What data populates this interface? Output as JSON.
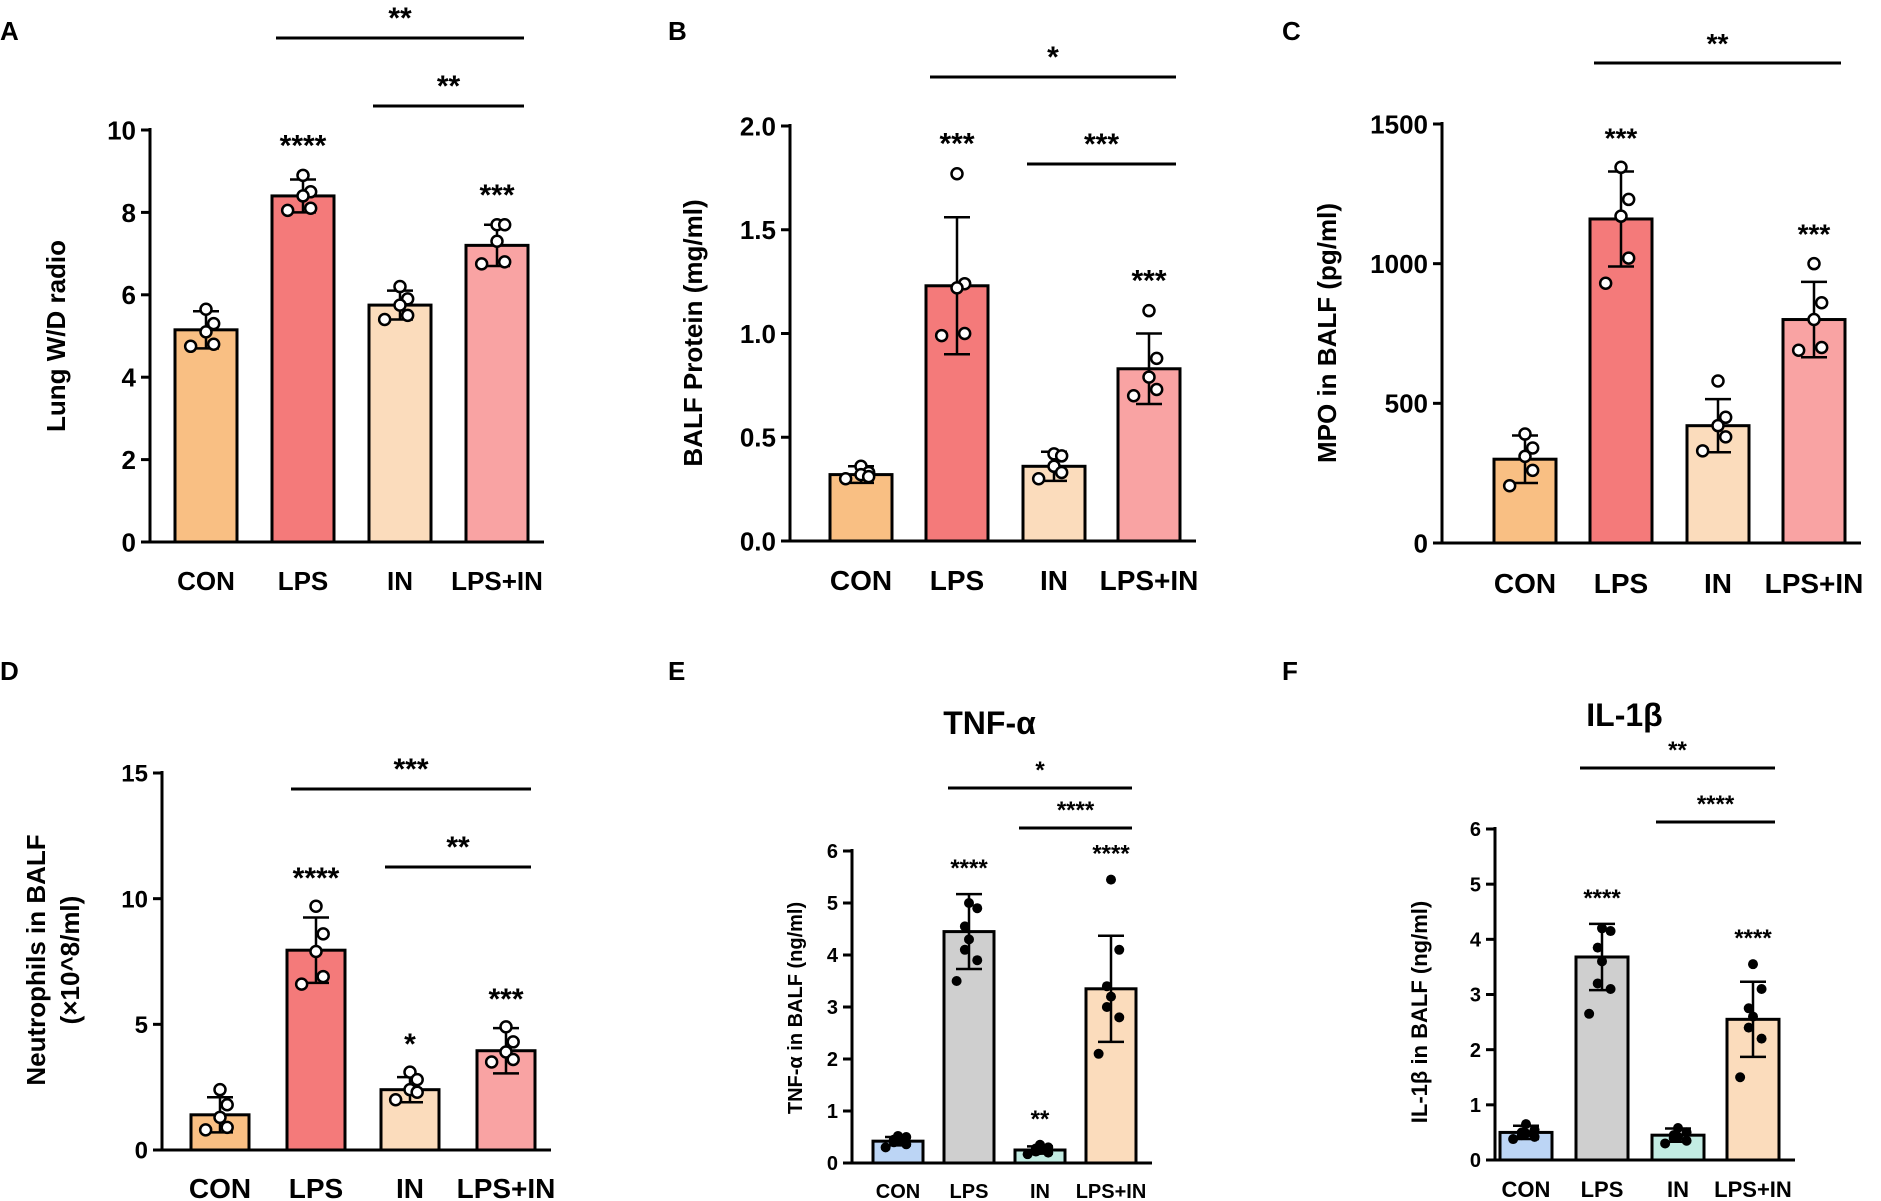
{
  "chart_data": [
    {
      "panel": "A",
      "type": "bar",
      "title": "",
      "ylabel": "Lung W/D radio",
      "xlabel": "",
      "ylim": [
        0,
        10
      ],
      "yticks": [
        0,
        2,
        4,
        6,
        8,
        10
      ],
      "categories": [
        "CON",
        "LPS",
        "IN",
        "LPS+IN"
      ],
      "values": [
        5.15,
        8.4,
        5.75,
        7.2
      ],
      "errors": [
        0.45,
        0.4,
        0.35,
        0.5
      ],
      "colors": [
        "#f9bf83",
        "#f47a7a",
        "#fbdcbc",
        "#f9a3a3"
      ],
      "points": [
        [
          5.65,
          5.3,
          5.1,
          4.8,
          4.75
        ],
        [
          8.9,
          8.5,
          8.4,
          8.1,
          8.05
        ],
        [
          6.2,
          5.9,
          5.75,
          5.5,
          5.4
        ],
        [
          7.7,
          7.7,
          7.3,
          6.8,
          6.75
        ]
      ],
      "marker": "open",
      "bar_annotations": [
        "",
        "****",
        "",
        "***"
      ],
      "brackets": [
        {
          "from": "LPS",
          "to": "LPS+IN",
          "label": "**"
        },
        {
          "from": "IN",
          "to": "LPS+IN",
          "label": "**"
        }
      ]
    },
    {
      "panel": "B",
      "type": "bar",
      "title": "",
      "ylabel": "BALF Protein (mg/ml)",
      "xlabel": "",
      "ylim": [
        0,
        2.0
      ],
      "yticks": [
        "0.0",
        "0.5",
        "1.0",
        "1.5",
        "2.0"
      ],
      "categories": [
        "CON",
        "LPS",
        "IN",
        "LPS+IN"
      ],
      "values": [
        0.32,
        1.23,
        0.36,
        0.83
      ],
      "errors": [
        0.04,
        0.33,
        0.07,
        0.17
      ],
      "colors": [
        "#f9bf83",
        "#f47a7a",
        "#fbdcbc",
        "#f9a3a3"
      ],
      "points": [
        [
          0.36,
          0.33,
          0.32,
          0.31,
          0.3
        ],
        [
          1.77,
          1.24,
          1.22,
          1.0,
          0.99
        ],
        [
          0.42,
          0.41,
          0.36,
          0.33,
          0.3
        ],
        [
          1.11,
          0.88,
          0.79,
          0.73,
          0.7
        ]
      ],
      "marker": "open",
      "bar_annotations": [
        "",
        "***",
        "",
        "***"
      ],
      "brackets": [
        {
          "from": "LPS",
          "to": "LPS+IN",
          "label": "*"
        },
        {
          "from": "IN",
          "to": "LPS+IN",
          "label": "***"
        }
      ]
    },
    {
      "panel": "C",
      "type": "bar",
      "title": "",
      "ylabel": "MPO in BALF (pg/ml)",
      "xlabel": "",
      "ylim": [
        0,
        1500
      ],
      "yticks": [
        0,
        500,
        1000,
        1500
      ],
      "categories": [
        "CON",
        "LPS",
        "IN",
        "LPS+IN"
      ],
      "values": [
        300,
        1160,
        420,
        800
      ],
      "errors": [
        85,
        170,
        95,
        135
      ],
      "colors": [
        "#f9bf83",
        "#f47a7a",
        "#fbdcbc",
        "#f9a3a3"
      ],
      "points": [
        [
          390,
          340,
          310,
          260,
          205
        ],
        [
          1345,
          1230,
          1170,
          1020,
          930
        ],
        [
          580,
          450,
          420,
          380,
          330
        ],
        [
          1000,
          860,
          800,
          700,
          690
        ]
      ],
      "marker": "open",
      "bar_annotations": [
        "",
        "***",
        "",
        "***"
      ],
      "brackets": [
        {
          "from": "LPS",
          "to": "LPS+IN",
          "label": "**"
        }
      ]
    },
    {
      "panel": "D",
      "type": "bar",
      "title": "",
      "ylabel": "Neutrophils in BALF (×10^8/ml)",
      "xlabel": "",
      "ylim": [
        0,
        15
      ],
      "yticks": [
        0,
        5,
        10,
        15
      ],
      "categories": [
        "CON",
        "LPS",
        "IN",
        "LPS+IN"
      ],
      "values": [
        1.4,
        7.95,
        2.4,
        3.95
      ],
      "errors": [
        0.7,
        1.3,
        0.5,
        0.9
      ],
      "colors": [
        "#f9bf83",
        "#f47a7a",
        "#fbdcbc",
        "#f9a3a3"
      ],
      "points": [
        [
          2.4,
          1.8,
          1.3,
          0.9,
          0.8
        ],
        [
          9.7,
          8.6,
          7.9,
          6.9,
          6.6
        ],
        [
          3.1,
          2.8,
          2.4,
          2.3,
          2.0
        ],
        [
          4.9,
          4.3,
          3.9,
          3.6,
          3.5
        ]
      ],
      "marker": "open",
      "bar_annotations": [
        "",
        "****",
        "*",
        "***"
      ],
      "brackets": [
        {
          "from": "LPS",
          "to": "LPS+IN",
          "label": "***"
        },
        {
          "from": "IN",
          "to": "LPS+IN",
          "label": "**"
        }
      ]
    },
    {
      "panel": "E",
      "type": "bar",
      "title": "TNF-α",
      "ylabel": "TNF-α in BALF (ng/ml)",
      "xlabel": "",
      "ylim": [
        0,
        6
      ],
      "yticks": [
        0,
        1,
        2,
        3,
        4,
        5,
        6
      ],
      "categories": [
        "CON",
        "LPS",
        "IN",
        "LPS+IN"
      ],
      "values": [
        0.42,
        4.45,
        0.25,
        3.35
      ],
      "errors": [
        0.08,
        0.72,
        0.07,
        1.02
      ],
      "colors": [
        "#bcd5f5",
        "#cfcfcf",
        "#c3ece3",
        "#fbdcbc"
      ],
      "points": [
        [
          0.52,
          0.5,
          0.45,
          0.42,
          0.4,
          0.36,
          0.3
        ],
        [
          5.0,
          4.9,
          4.55,
          4.3,
          4.1,
          3.9,
          3.5
        ],
        [
          0.35,
          0.3,
          0.28,
          0.25,
          0.22,
          0.2,
          0.17
        ],
        [
          5.45,
          4.1,
          3.4,
          3.2,
          3.0,
          2.8,
          2.1
        ]
      ],
      "marker": "filled",
      "bar_annotations": [
        "",
        "****",
        "**",
        "****"
      ],
      "brackets": [
        {
          "from": "LPS",
          "to": "LPS+IN",
          "label": "*"
        },
        {
          "from": "IN",
          "to": "LPS+IN",
          "label": "****"
        }
      ]
    },
    {
      "panel": "F",
      "type": "bar",
      "title": "IL-1β",
      "ylabel": "IL-1β in BALF (ng/ml)",
      "xlabel": "",
      "ylim": [
        0,
        6
      ],
      "yticks": [
        0,
        1,
        2,
        3,
        4,
        5,
        6
      ],
      "categories": [
        "CON",
        "LPS",
        "IN",
        "LPS+IN"
      ],
      "values": [
        0.5,
        3.68,
        0.45,
        2.55
      ],
      "errors": [
        0.12,
        0.6,
        0.12,
        0.68
      ],
      "colors": [
        "#bcd5f5",
        "#cfcfcf",
        "#c3ece3",
        "#fbdcbc"
      ],
      "points": [
        [
          0.65,
          0.55,
          0.5,
          0.48,
          0.45,
          0.42,
          0.38
        ],
        [
          4.2,
          4.15,
          3.85,
          3.6,
          3.2,
          3.1,
          2.65
        ],
        [
          0.58,
          0.5,
          0.45,
          0.42,
          0.4,
          0.35,
          0.3
        ],
        [
          3.55,
          3.1,
          2.75,
          2.6,
          2.4,
          2.2,
          1.5
        ]
      ],
      "marker": "filled",
      "bar_annotations": [
        "",
        "****",
        "",
        "****"
      ],
      "brackets": [
        {
          "from": "LPS",
          "to": "LPS+IN",
          "label": "**"
        },
        {
          "from": "IN",
          "to": "LPS+IN",
          "label": "****"
        }
      ]
    }
  ]
}
